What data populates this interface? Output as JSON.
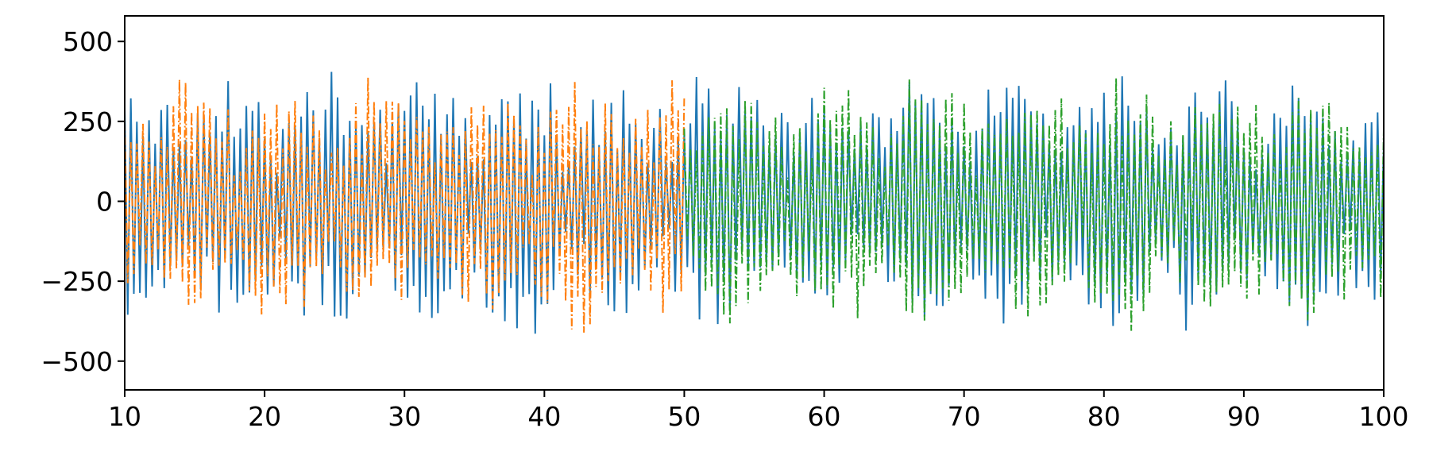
{
  "chart_data": {
    "type": "line",
    "title": "",
    "xlabel": "",
    "ylabel": "",
    "xlim": [
      10,
      100
    ],
    "ylim": [
      -590,
      580
    ],
    "x_ticks": [
      10,
      20,
      30,
      40,
      50,
      60,
      70,
      80,
      90,
      100
    ],
    "y_ticks": [
      500,
      250,
      0,
      -250,
      -500
    ],
    "y_tick_labels": [
      "500",
      "250",
      "0",
      "−250",
      "−500"
    ],
    "grid": false,
    "legend": "none",
    "series": [
      {
        "color": "#1f77b4",
        "line_style": "solid",
        "x_range": [
          10,
          100
        ],
        "center": 0,
        "typical_amplitude": 380,
        "peak_max": 530,
        "peak_min": -540,
        "cycles_per_x_unit": 2.3
      },
      {
        "color": "#ff7f0e",
        "line_style": "dash-dot",
        "x_range": [
          10,
          50
        ],
        "center": 0,
        "typical_amplitude": 360,
        "peak_max": 410,
        "peak_min": -500,
        "cycles_per_x_unit": 2.3
      },
      {
        "color": "#2ca02c",
        "line_style": "dash-dot",
        "x_range": [
          50,
          100
        ],
        "center": 0,
        "typical_amplitude": 370,
        "peak_max": 440,
        "peak_min": -520,
        "cycles_per_x_unit": 2.3
      }
    ]
  }
}
